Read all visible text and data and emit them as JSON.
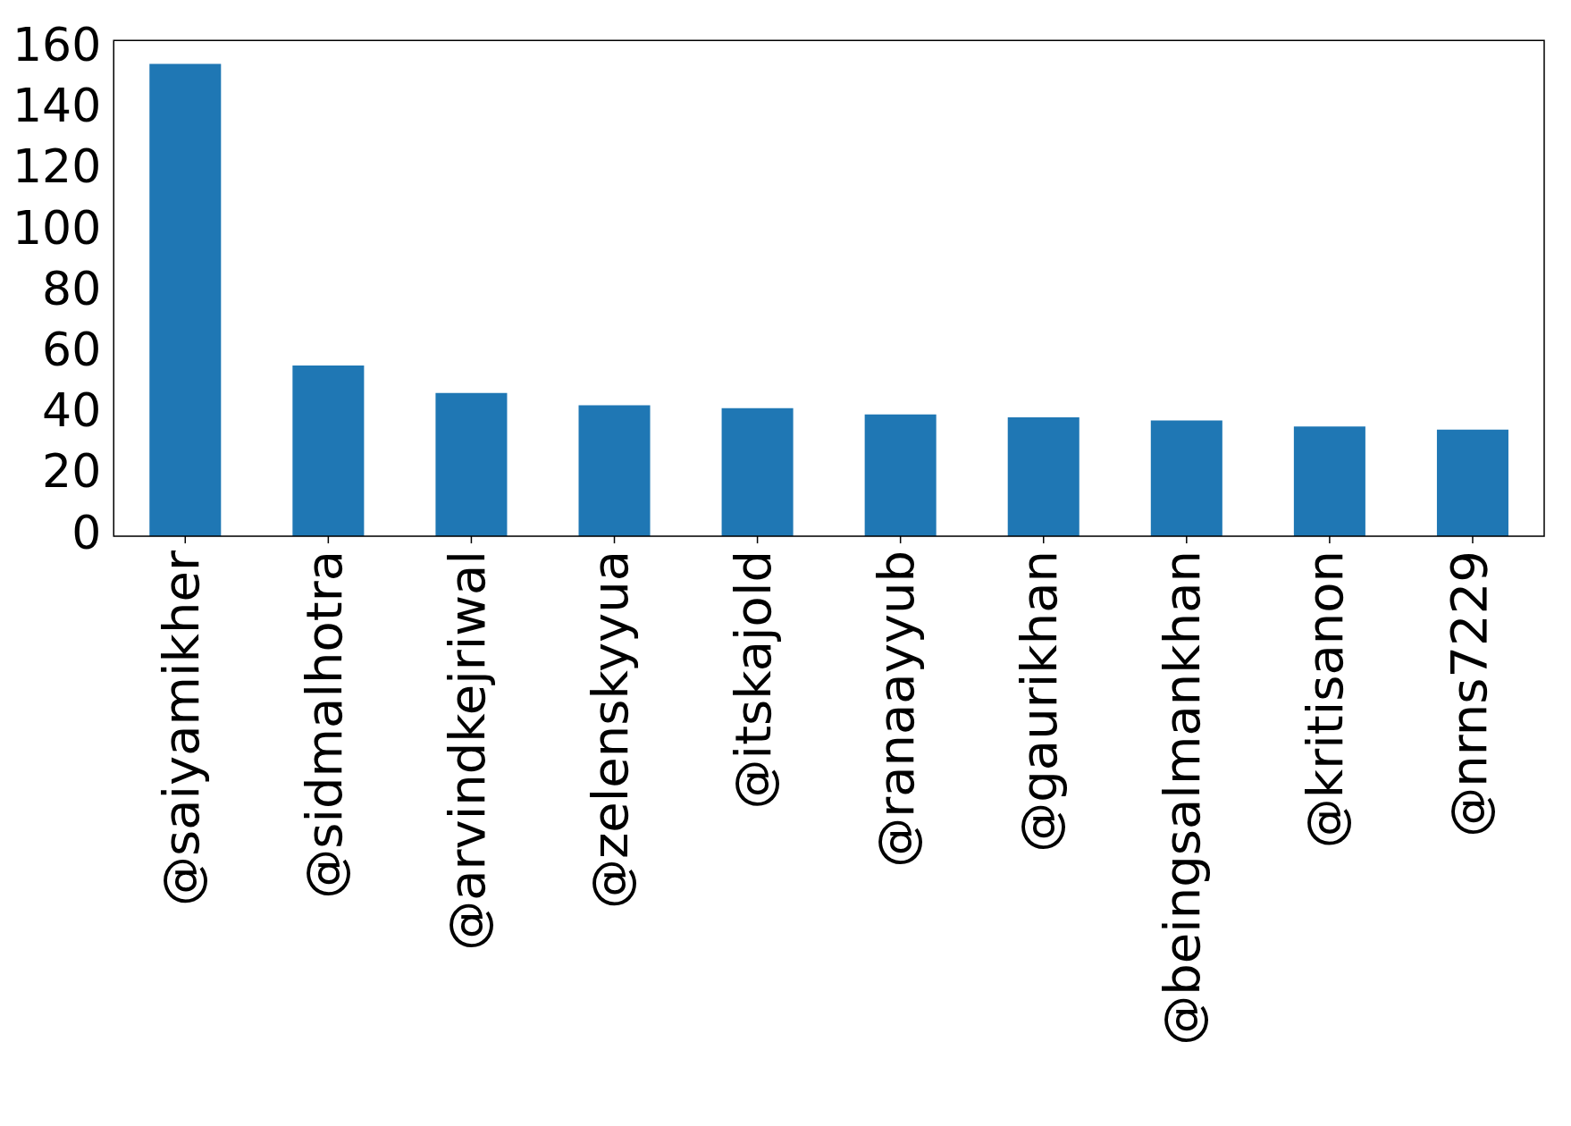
{
  "chart_data": {
    "type": "bar",
    "categories": [
      "@saiyamikher",
      "@sidmalhotra",
      "@arvindkejriwal",
      "@zelenskyyua",
      "@itskajold",
      "@ranaayyub",
      "@gaurikhan",
      "@beingsalmankhan",
      "@kritisanon",
      "@nrns7229"
    ],
    "values": [
      155,
      56,
      47,
      43,
      42,
      40,
      39,
      38,
      36,
      35
    ],
    "color": "#1f77b4",
    "ylim": [
      0,
      162.75
    ],
    "yticks": [
      0,
      20,
      40,
      60,
      80,
      100,
      120,
      140,
      160
    ],
    "grid": false,
    "legend": false
  }
}
